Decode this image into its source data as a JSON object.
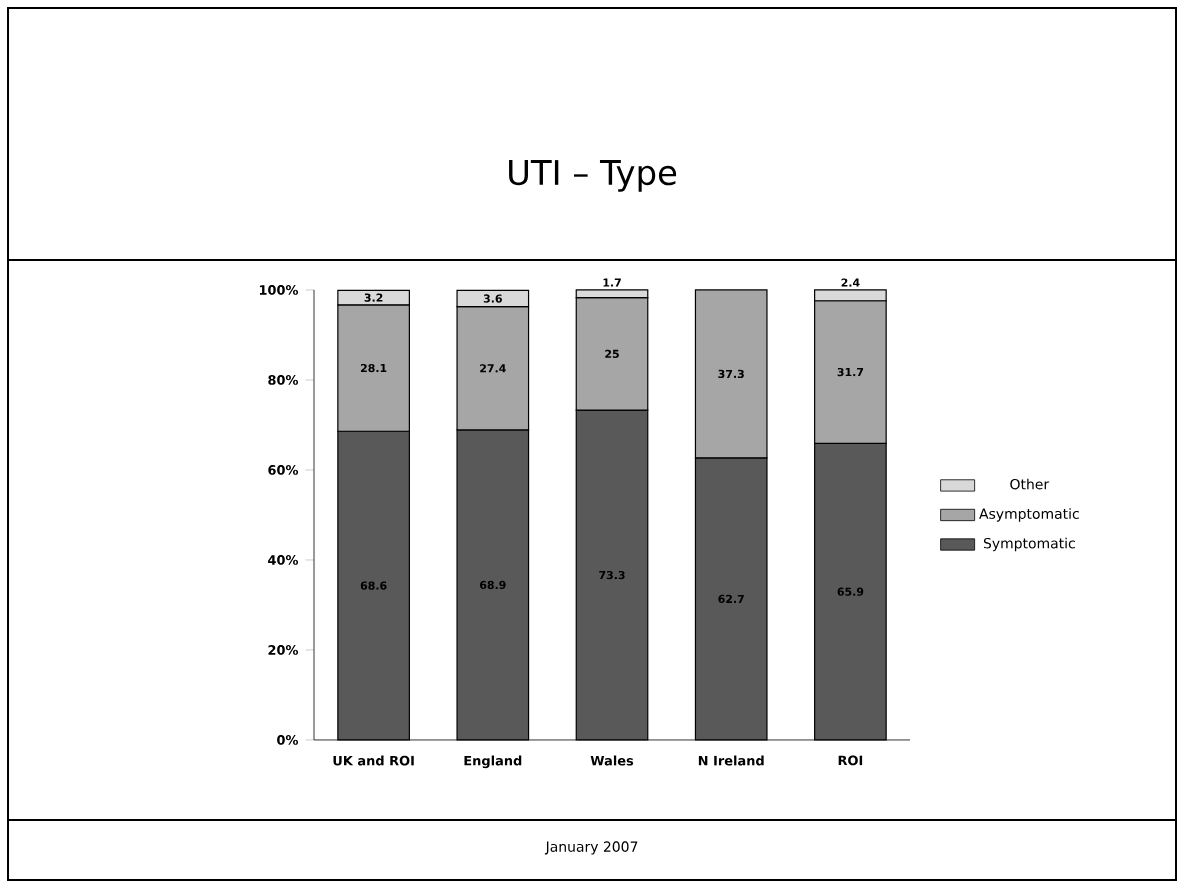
{
  "chart_data": {
    "type": "bar",
    "title": "UTI – Type",
    "stacked": true,
    "data_labels": true,
    "legend": "right",
    "categories": [
      "UK and ROI",
      "England",
      "Wales",
      "N Ireland",
      "ROI"
    ],
    "series": [
      {
        "name": "Symptomatic",
        "color": "#595959",
        "values": [
          68.6,
          68.9,
          73.3,
          62.7,
          65.9
        ]
      },
      {
        "name": "Asymptomatic",
        "color": "#a6a6a6",
        "values": [
          28.1,
          27.4,
          25,
          37.3,
          31.7
        ]
      },
      {
        "name": "Other",
        "color": "#d9d9d9",
        "values": [
          3.2,
          3.6,
          1.7,
          null,
          2.4
        ]
      }
    ],
    "ylim": [
      0,
      100
    ],
    "yticks": [
      {
        "value": 0,
        "label": "0%"
      },
      {
        "value": 20,
        "label": "20%"
      },
      {
        "value": 40,
        "label": "40%"
      },
      {
        "value": 60,
        "label": "60%"
      },
      {
        "value": 80,
        "label": "80%"
      },
      {
        "value": 100,
        "label": "100%"
      }
    ],
    "annotations": [
      "January 2007"
    ]
  }
}
